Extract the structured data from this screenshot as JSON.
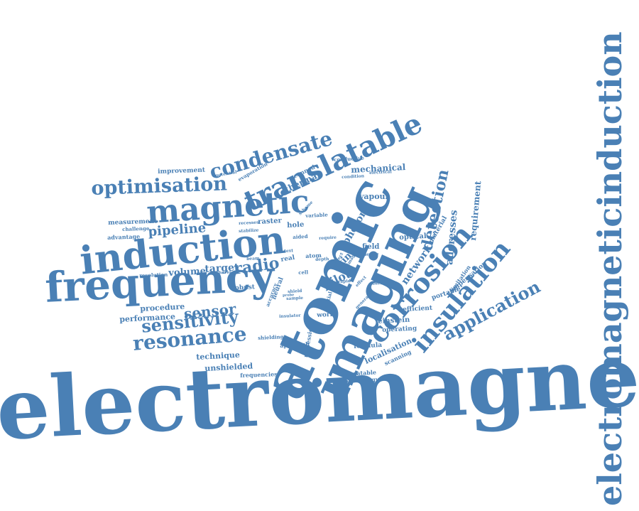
{
  "colors": {
    "text": "#4a80b5",
    "background": "#ffffff"
  },
  "words": [
    "electromagnetic",
    "electromagneticinduction",
    "atomic",
    "imaging",
    "frequency",
    "induction",
    "magnetic",
    "translatable",
    "condensate",
    "corrosion",
    "insulation",
    "optimisation",
    "resonance",
    "sensitivity",
    "application",
    "detection",
    "sensor",
    "pipeline",
    "radio",
    "volume",
    "target",
    "pilot",
    "skin",
    "photon",
    "network",
    "addresses",
    "requirement",
    "material",
    "mechanical",
    "thermal",
    "vapour",
    "scanned",
    "field",
    "raster",
    "hole",
    "real",
    "neural",
    "procedure",
    "performance",
    "technique",
    "unshielded",
    "frequencies",
    "localisation",
    "scanning",
    "repeatable",
    "technology",
    "formula",
    "einstein",
    "operating",
    "efficient",
    "portable",
    "compensation",
    "limitation",
    "world",
    "robust",
    "improvement",
    "measurement",
    "advantage",
    "challenge",
    "resolution",
    "regression",
    "approach",
    "shielding",
    "optical",
    "potential",
    "evaporation",
    "conductive",
    "electrical",
    "condition",
    "variable",
    "recesses",
    "stabilize",
    "aided",
    "atom",
    "depth",
    "cell",
    "rapid",
    "insulator",
    "sample",
    "shield",
    "beam",
    "scenario",
    "accuracy",
    "spatial",
    "general",
    "direct",
    "image",
    "device",
    "text",
    "require",
    "power",
    "effect",
    "scheme",
    "probe"
  ]
}
